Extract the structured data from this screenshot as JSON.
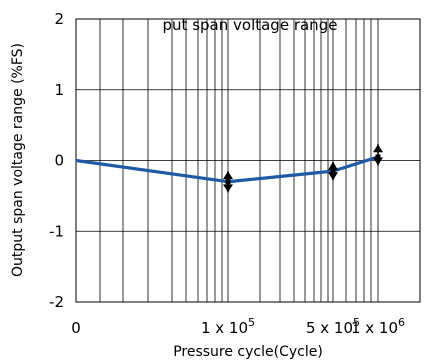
{
  "chart_data": {
    "type": "line",
    "title": "put span voltage range",
    "xlabel": "Pressure cycle(Cycle)",
    "ylabel": "Output span voltage range (%FS)",
    "x_scale": "log-style (cycles)",
    "x_ticks": [
      {
        "value": 0,
        "label": "0"
      },
      {
        "value": 100000,
        "label": "1 x 10",
        "exp": "5"
      },
      {
        "value": 500000,
        "label": "5 x 10",
        "exp": "5"
      },
      {
        "value": 1000000,
        "label": "1 x 10",
        "exp": "6"
      }
    ],
    "y_ticks": [
      2,
      1,
      0,
      -1,
      -2
    ],
    "ylim": [
      -2,
      2
    ],
    "grid": true,
    "colors": {
      "line": "#1f5aa6",
      "grid": "#000000",
      "markers": "#000000"
    },
    "series": [
      {
        "x": [
          0,
          100000,
          500000,
          1000000
        ],
        "y": [
          0.0,
          -0.3,
          -0.15,
          0.05
        ]
      }
    ],
    "error_bars": [
      {
        "x": 100000,
        "center": -0.3,
        "low": -0.45,
        "high": -0.15
      },
      {
        "x": 500000,
        "center": -0.15,
        "low": -0.28,
        "high": -0.02
      },
      {
        "x": 1000000,
        "center": 0.05,
        "low": -0.07,
        "high": 0.23
      }
    ]
  }
}
